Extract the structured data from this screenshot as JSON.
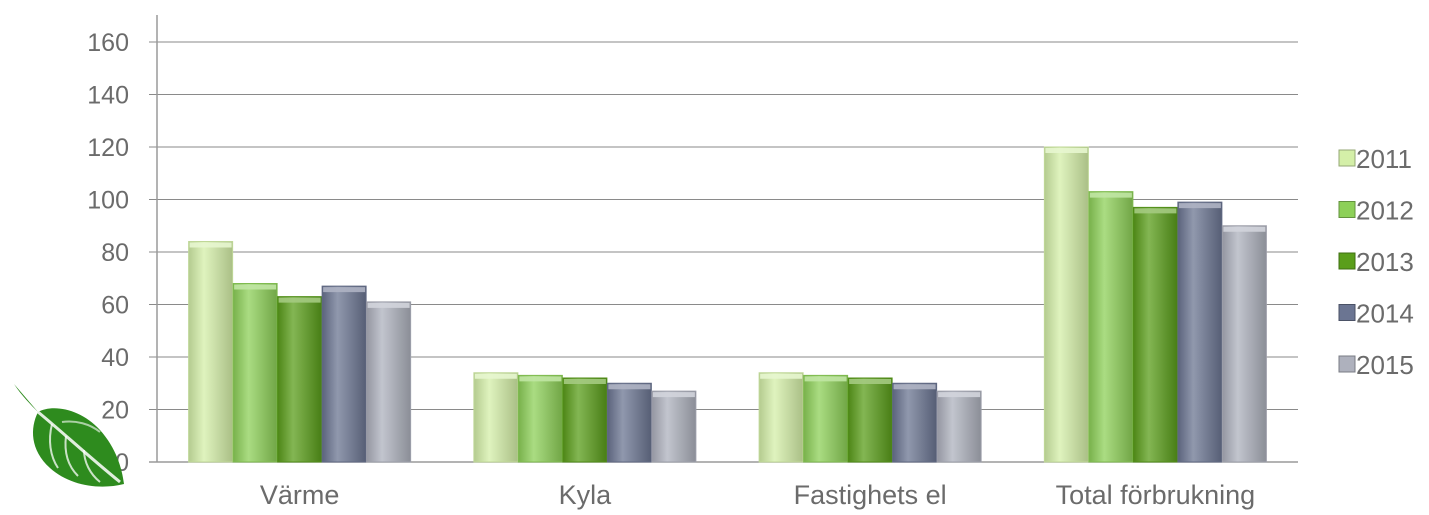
{
  "chart_data": {
    "type": "bar",
    "title": "",
    "xlabel": "",
    "ylabel": "",
    "ylim": [
      0,
      160
    ],
    "yticks": [
      0,
      20,
      40,
      60,
      80,
      100,
      120,
      140,
      160
    ],
    "grid": true,
    "legend_position": "right",
    "categories": [
      "Värme",
      "Kyla",
      "Fastighets el",
      "Total förbrukning"
    ],
    "series": [
      {
        "name": "2011",
        "color": "#d4efa8",
        "values": [
          84,
          34,
          34,
          120
        ]
      },
      {
        "name": "2012",
        "color": "#8dd058",
        "values": [
          68,
          33,
          33,
          103
        ]
      },
      {
        "name": "2013",
        "color": "#5a9e1a",
        "values": [
          63,
          32,
          32,
          97
        ]
      },
      {
        "name": "2014",
        "color": "#6b7592",
        "values": [
          67,
          30,
          30,
          99
        ]
      },
      {
        "name": "2015",
        "color": "#aeb1bd",
        "values": [
          61,
          27,
          27,
          90
        ]
      }
    ]
  },
  "logo": {
    "icon": "leaf-icon",
    "color": "#2e8b1e"
  }
}
